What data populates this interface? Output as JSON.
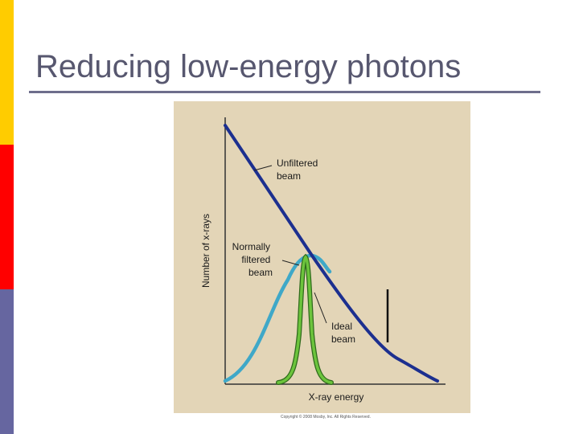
{
  "slide": {
    "title": "Reducing low-energy photons",
    "sidebar_colors": [
      "#ffcc00",
      "#ff0000",
      "#6666a0"
    ],
    "rule_color": "#6e6e8c"
  },
  "figure": {
    "background_color": "#e3d5b7",
    "y_axis_label": "Number of x-rays",
    "x_axis_label": "X-ray energy",
    "copyright": "Copyright © 2008 Mosby, Inc. All Rights Reserved.",
    "curves": [
      {
        "id": "unfiltered",
        "label_lines": [
          "Unfiltered",
          "beam"
        ],
        "color": "#1c2f8f"
      },
      {
        "id": "normally-filtered",
        "label_lines": [
          "Normally",
          "filtered",
          "beam"
        ],
        "color": "#3fa8c8"
      },
      {
        "id": "ideal",
        "label_lines": [
          "Ideal",
          "beam"
        ],
        "color": "#6cc43c"
      }
    ]
  }
}
